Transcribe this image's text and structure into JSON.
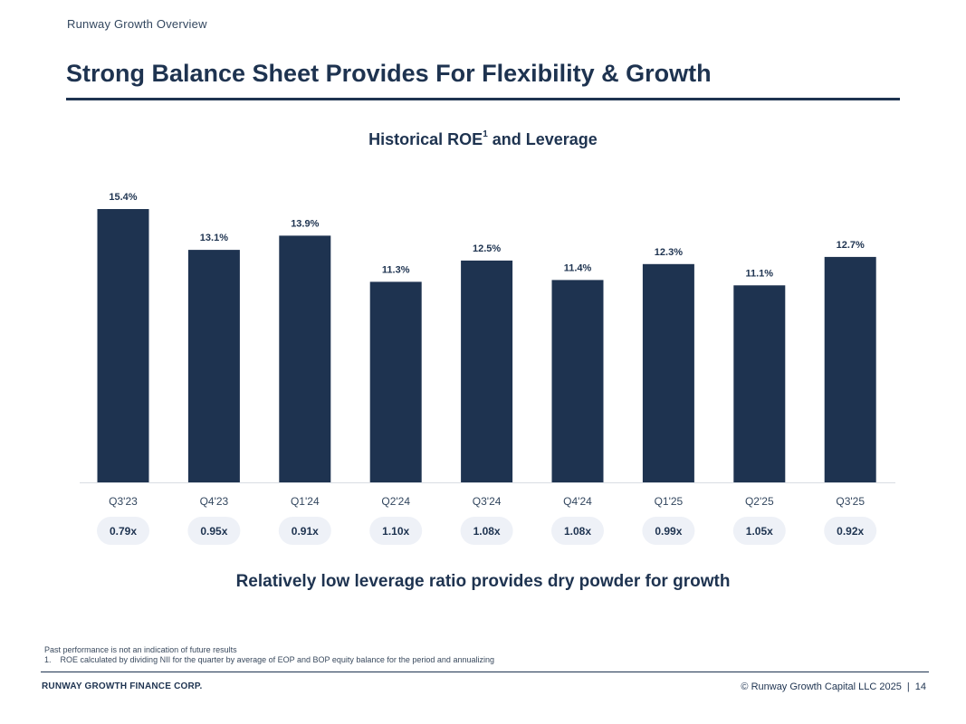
{
  "header": {
    "section_label": "Runway Growth Overview",
    "title": "Strong Balance Sheet Provides For Flexibility & Growth"
  },
  "chart_data": {
    "type": "bar",
    "title": "Historical ROE",
    "title_superscript": "1",
    "title_suffix": " and Leverage",
    "categories": [
      "Q3'23",
      "Q4'23",
      "Q1'24",
      "Q2'24",
      "Q3'24",
      "Q4'24",
      "Q1'25",
      "Q2'25",
      "Q3'25"
    ],
    "series": [
      {
        "name": "ROE",
        "values": [
          15.4,
          13.1,
          13.9,
          11.3,
          12.5,
          11.4,
          12.3,
          11.1,
          12.7
        ]
      }
    ],
    "data_labels": [
      "15.4%",
      "13.1%",
      "13.9%",
      "11.3%",
      "12.5%",
      "11.4%",
      "12.3%",
      "11.1%",
      "12.7%"
    ],
    "leverage": [
      "0.79x",
      "0.95x",
      "0.91x",
      "1.10x",
      "1.08x",
      "1.08x",
      "0.99x",
      "1.05x",
      "0.92x"
    ],
    "ylim": [
      0,
      15.4
    ],
    "xlabel": "",
    "ylabel": ""
  },
  "tagline": "Relatively low leverage ratio provides dry powder for growth",
  "footnotes": {
    "disclaimer": "Past performance is not an indication of future results",
    "note_number": "1.",
    "note_text": "ROE calculated by dividing NII for the quarter by average of EOP and BOP equity balance for the period and annualizing"
  },
  "footer": {
    "company": "RUNWAY GROWTH FINANCE CORP.",
    "copyright": "© Runway Growth Capital LLC 2025",
    "separator": "|",
    "page_number": "14"
  },
  "colors": {
    "bar": "#1e3350",
    "text": "#1e3350",
    "pill_bg": "#eef1f7",
    "axis": "#d9dde3"
  }
}
